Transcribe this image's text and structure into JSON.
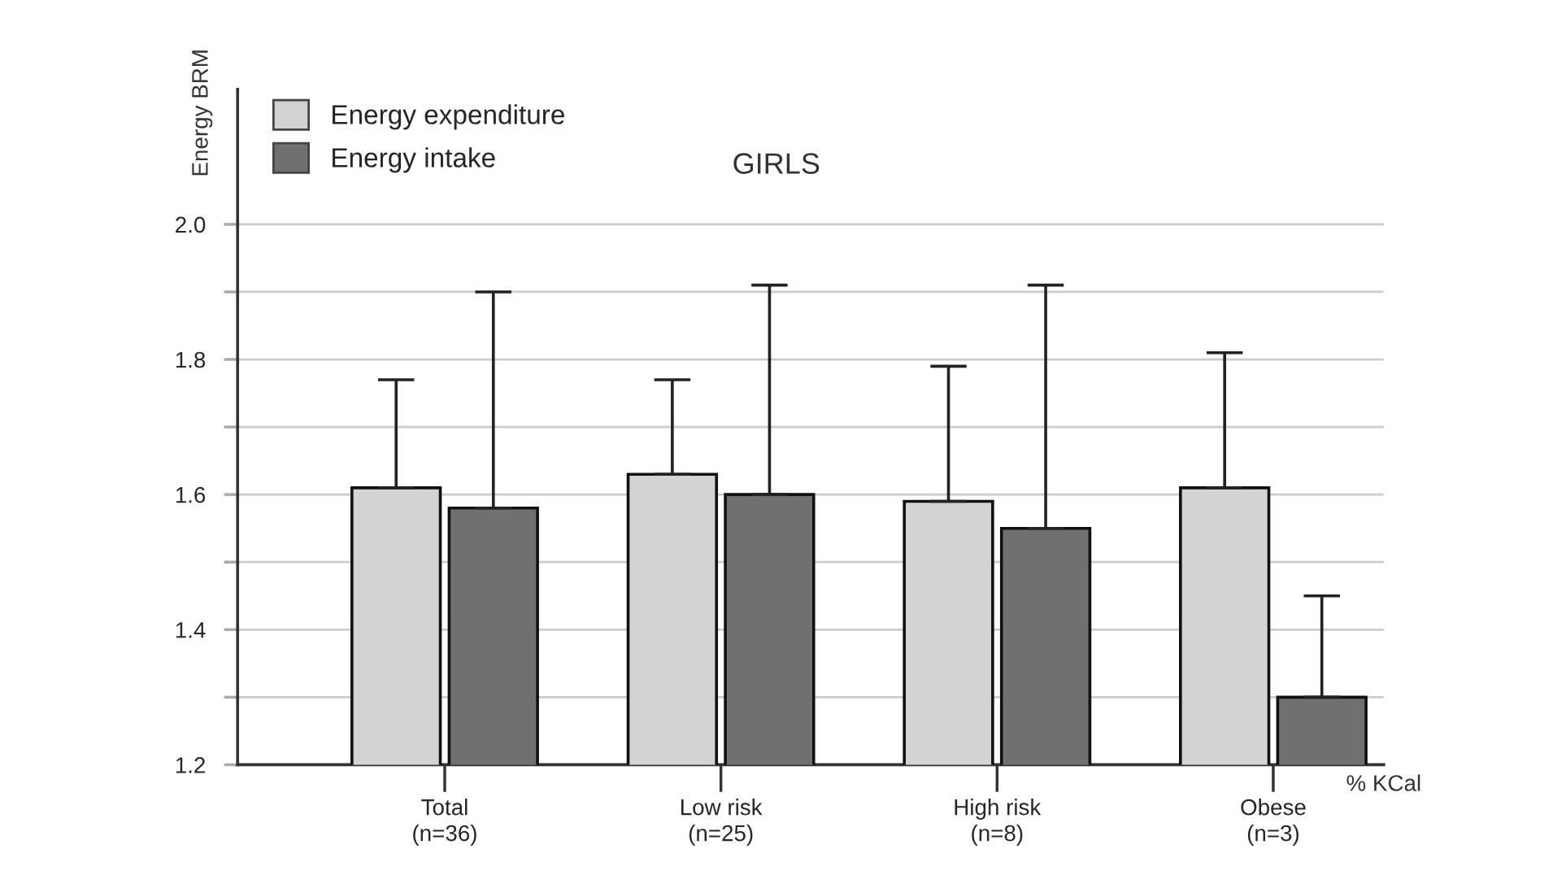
{
  "chart_data": {
    "type": "bar",
    "title": "GIRLS",
    "xlabel": "% KCal",
    "ylabel": "Energy BRM",
    "categories": [
      "Total\n(n=36)",
      "Low risk\n(n=25)",
      "High risk\n(n=8)",
      "Obese\n(n=3)"
    ],
    "series": [
      {
        "name": "Energy expenditure",
        "color": "#d3d3d3",
        "values": [
          1.61,
          1.63,
          1.59,
          1.61
        ],
        "errors": [
          [
            1.61,
            1.77
          ],
          [
            1.63,
            1.77
          ],
          [
            1.59,
            1.79
          ],
          [
            1.61,
            1.81
          ]
        ]
      },
      {
        "name": "Energy intake",
        "color": "#707070",
        "values": [
          1.58,
          1.6,
          1.55,
          1.3
        ],
        "errors": [
          [
            1.58,
            1.9
          ],
          [
            1.6,
            1.91
          ],
          [
            1.55,
            1.91
          ],
          [
            1.3,
            1.45
          ]
        ]
      }
    ],
    "ylim": [
      1.2,
      2.2
    ],
    "yticks": [
      1.2,
      {
        "value": 1.3,
        "label": null
      },
      1.4,
      {
        "value": 1.5,
        "label": null
      },
      1.6,
      {
        "value": 1.7,
        "label": null
      },
      1.8,
      {
        "value": 1.9,
        "label": null
      },
      {
        "value": 2.0,
        "label": "2.0"
      }
    ],
    "grid": "y",
    "legend": "top left"
  }
}
